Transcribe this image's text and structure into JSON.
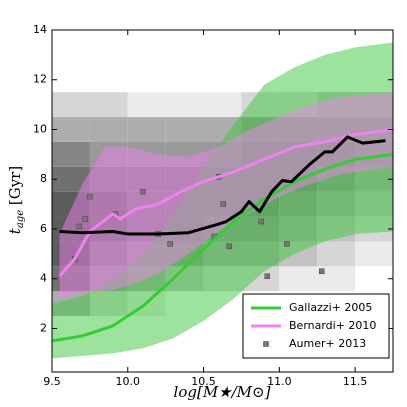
{
  "chart_data": {
    "type": "line",
    "xlabel": "log[M★/M⊙]",
    "ylabel": {
      "main": "t",
      "sub": "age",
      "rest": " [Gyr]"
    },
    "xlim": [
      9.5,
      11.75
    ],
    "ylim": [
      0.25,
      14
    ],
    "xticks": [
      {
        "value": 9.5,
        "label": "9.5"
      },
      {
        "value": 10.0,
        "label": "10.0"
      },
      {
        "value": 10.5,
        "label": "10.5"
      },
      {
        "value": 11.0,
        "label": "11.0"
      },
      {
        "value": 11.5,
        "label": "11.5"
      }
    ],
    "yticks": [
      2,
      4,
      6,
      8,
      10,
      12,
      14
    ],
    "legend": "lower right",
    "histogram": {
      "xbins": [
        9.5,
        9.75,
        10.0,
        10.25,
        10.5,
        10.75,
        11.0,
        11.25,
        11.5,
        11.75
      ],
      "ybins": [
        2.5,
        3.5,
        4.5,
        5.5,
        6.5,
        7.5,
        8.5,
        9.5,
        10.5,
        11.5
      ],
      "counts": [
        [
          4,
          2,
          1,
          0,
          0,
          0,
          0,
          0,
          0
        ],
        [
          7,
          5,
          4,
          3,
          2,
          2,
          1,
          1,
          0
        ],
        [
          8,
          6,
          5,
          5,
          4,
          4,
          3,
          2,
          1
        ],
        [
          8,
          7,
          6,
          6,
          5,
          5,
          4,
          3,
          2
        ],
        [
          8,
          7,
          6,
          6,
          6,
          6,
          5,
          4,
          3
        ],
        [
          7,
          6,
          6,
          6,
          6,
          6,
          6,
          5,
          4
        ],
        [
          6,
          5,
          5,
          5,
          5,
          6,
          6,
          6,
          5
        ],
        [
          4,
          4,
          4,
          4,
          4,
          5,
          5,
          5,
          5
        ],
        [
          2,
          2,
          1,
          1,
          1,
          2,
          2,
          3,
          3
        ]
      ]
    },
    "bands": [
      {
        "color": "#3cc83c",
        "x": [
          9.5,
          9.7,
          9.9,
          10.1,
          10.3,
          10.5,
          10.7,
          10.9,
          11.1,
          11.3,
          11.5,
          11.75
        ],
        "upper": [
          3.0,
          3.3,
          4.0,
          5.0,
          6.5,
          8.5,
          10.2,
          11.8,
          12.5,
          13.0,
          13.3,
          13.5
        ],
        "lower": [
          0.8,
          0.9,
          1.0,
          1.2,
          1.6,
          2.3,
          3.2,
          4.3,
          5.0,
          5.5,
          5.8,
          5.9
        ]
      },
      {
        "color": "#ee82ee",
        "x": [
          9.55,
          9.7,
          9.85,
          10.0,
          10.2,
          10.4,
          10.6,
          10.8,
          11.0,
          11.2,
          11.4,
          11.75
        ],
        "upper": [
          5.8,
          7.8,
          9.3,
          9.3,
          9.0,
          8.9,
          9.3,
          10.0,
          10.5,
          11.0,
          11.3,
          11.5
        ],
        "lower": [
          3.2,
          3.5,
          3.5,
          3.7,
          4.2,
          5.0,
          5.9,
          6.6,
          7.3,
          7.8,
          8.2,
          8.5
        ]
      }
    ],
    "series": [
      {
        "name": "Gallazzi+ 2005",
        "color": "#33cc33",
        "x": [
          9.5,
          9.7,
          9.9,
          10.1,
          10.3,
          10.5,
          10.7,
          10.9,
          11.1,
          11.3,
          11.5,
          11.75
        ],
        "values": [
          1.5,
          1.7,
          2.1,
          2.9,
          4.0,
          5.2,
          6.3,
          7.2,
          7.9,
          8.4,
          8.8,
          9.0
        ]
      },
      {
        "name": "Bernardi+ 2010",
        "color": "#ee82ee",
        "x": [
          9.55,
          9.65,
          9.75,
          9.9,
          9.95,
          10.05,
          10.2,
          10.35,
          10.5,
          10.7,
          10.9,
          11.1,
          11.3,
          11.5,
          11.75
        ],
        "values": [
          4.1,
          4.8,
          5.9,
          6.6,
          6.4,
          6.8,
          7.0,
          7.5,
          7.9,
          8.3,
          8.8,
          9.3,
          9.5,
          9.8,
          10.0
        ]
      },
      {
        "color": "#000000",
        "x": [
          9.55,
          9.7,
          9.9,
          10.0,
          10.2,
          10.4,
          10.6,
          10.65,
          10.75,
          10.8,
          10.87,
          10.95,
          11.02,
          11.08,
          11.2,
          11.3,
          11.35,
          11.45,
          11.55,
          11.7
        ],
        "values": [
          5.9,
          5.85,
          5.9,
          5.8,
          5.8,
          5.85,
          6.2,
          6.3,
          6.7,
          7.1,
          6.7,
          7.5,
          7.95,
          7.9,
          8.6,
          9.1,
          9.1,
          9.7,
          9.45,
          9.55
        ]
      }
    ],
    "points": {
      "name": "Aumer+ 2013",
      "color": "#777777",
      "x": [
        9.65,
        9.68,
        9.72,
        9.75,
        9.92,
        10.1,
        10.2,
        10.28,
        10.57,
        10.6,
        10.63,
        10.67,
        10.88,
        10.92,
        11.05,
        11.28
      ],
      "values": [
        4.8,
        6.1,
        6.4,
        7.3,
        6.6,
        7.5,
        5.8,
        5.4,
        5.7,
        8.1,
        7.0,
        5.3,
        6.3,
        4.1,
        5.4,
        4.3
      ]
    }
  }
}
